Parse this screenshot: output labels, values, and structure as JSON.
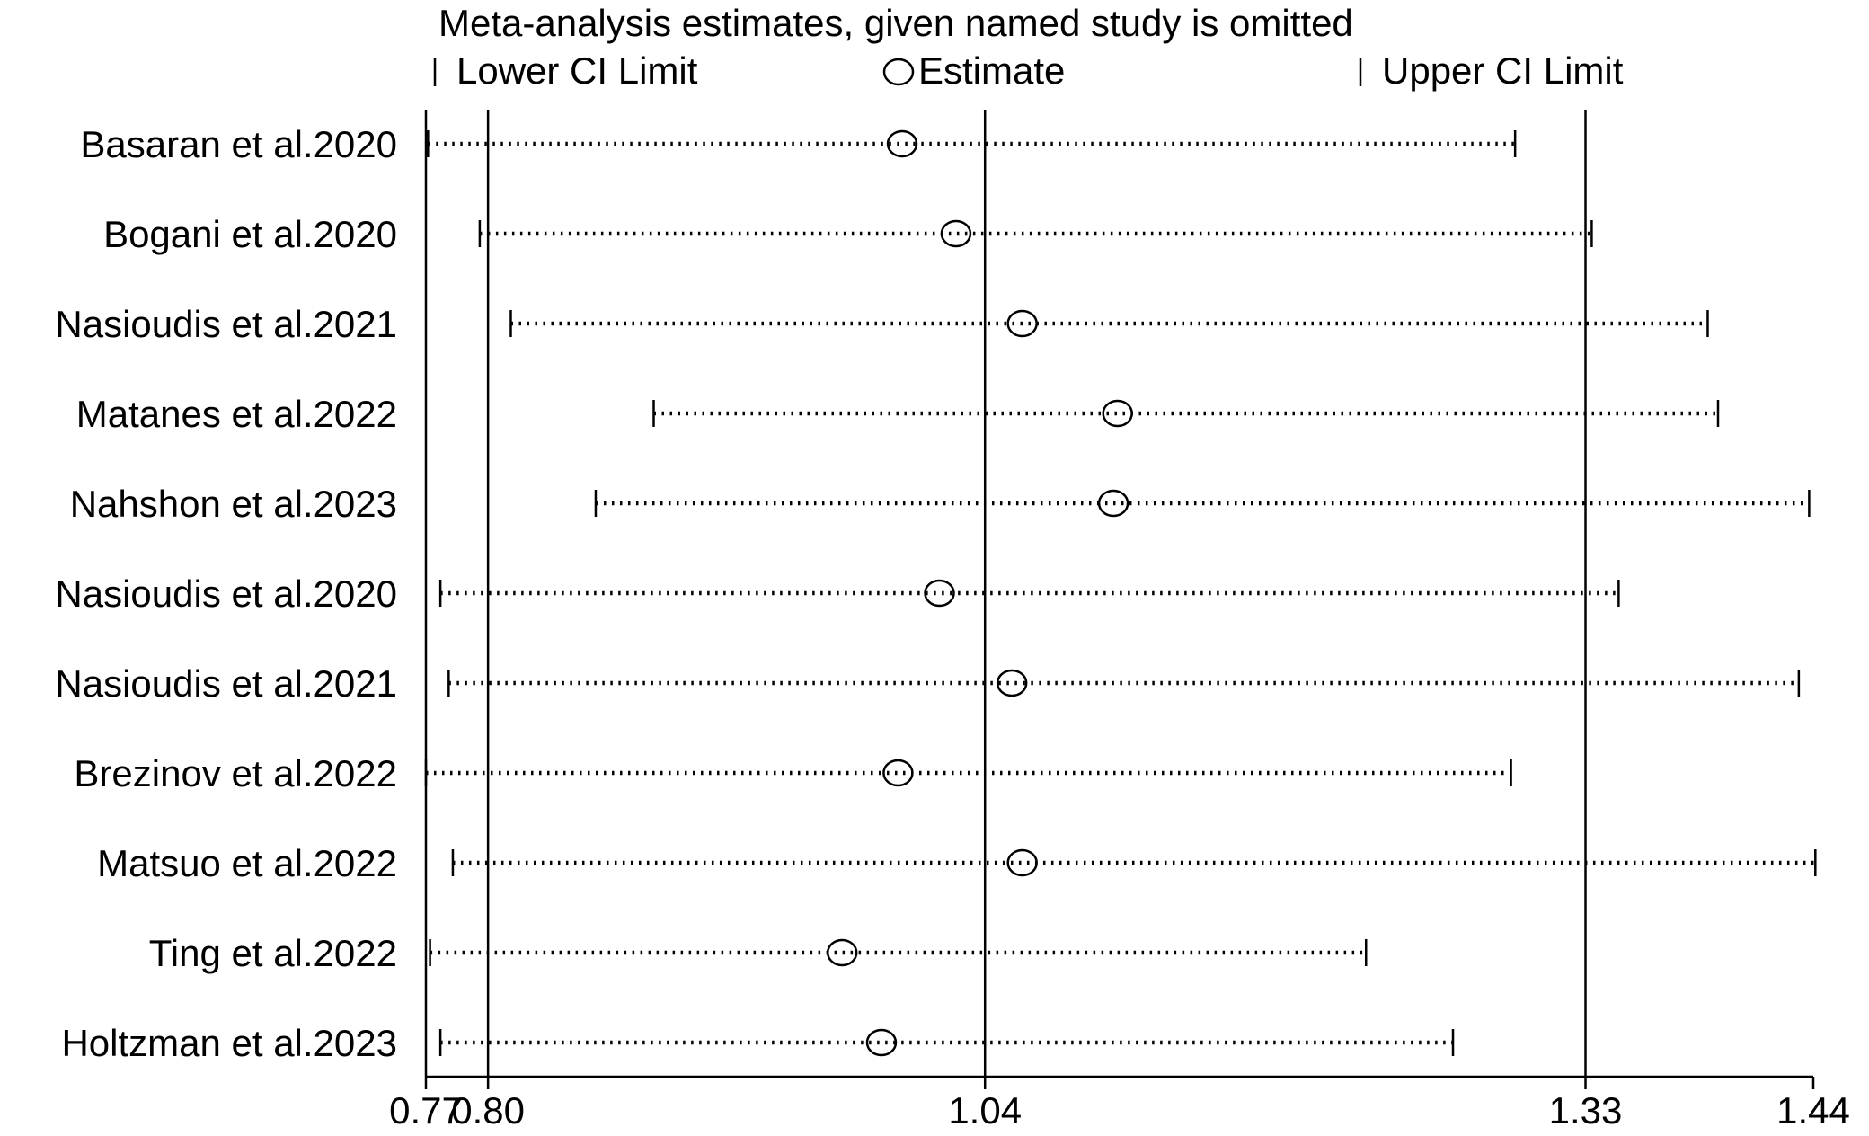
{
  "chart_data": {
    "type": "sensitivity-forest",
    "title": "Meta-analysis estimates, given named study is omitted",
    "legend": {
      "lower": "Lower CI Limit",
      "estimate": "Estimate",
      "upper": "Upper CI Limit"
    },
    "x_ticks": [
      {
        "value": 0.77,
        "label": "0.77"
      },
      {
        "value": 0.8,
        "label": "0.80"
      },
      {
        "value": 1.04,
        "label": "1.04"
      },
      {
        "value": 1.33,
        "label": "1.33"
      },
      {
        "value": 1.44,
        "label": "1.44"
      }
    ],
    "reference_lines": [
      0.8,
      1.04,
      1.33
    ],
    "xlim": [
      0.77,
      1.44
    ],
    "studies": [
      {
        "name": "Basaran et al.2020",
        "lower": 0.771,
        "estimate": 1.0,
        "upper": 1.296
      },
      {
        "name": "Bogani et al.2020",
        "lower": 0.796,
        "estimate": 1.026,
        "upper": 1.333
      },
      {
        "name": "Nasioudis et al.2021",
        "lower": 0.811,
        "estimate": 1.058,
        "upper": 1.389
      },
      {
        "name": "Matanes et al.2022",
        "lower": 0.88,
        "estimate": 1.104,
        "upper": 1.394
      },
      {
        "name": "Nahshon et al.2023",
        "lower": 0.852,
        "estimate": 1.102,
        "upper": 1.438
      },
      {
        "name": "Nasioudis et al.2020",
        "lower": 0.777,
        "estimate": 1.018,
        "upper": 1.346
      },
      {
        "name": "Nasioudis et al.2021",
        "lower": 0.781,
        "estimate": 1.053,
        "upper": 1.433
      },
      {
        "name": "Brezinov et al.2022",
        "lower": 0.77,
        "estimate": 0.998,
        "upper": 1.294
      },
      {
        "name": "Matsuo et al.2022",
        "lower": 0.783,
        "estimate": 1.058,
        "upper": 1.441
      },
      {
        "name": "Ting et al.2022",
        "lower": 0.772,
        "estimate": 0.971,
        "upper": 1.224
      },
      {
        "name": "Holtzman et al.2023",
        "lower": 0.777,
        "estimate": 0.99,
        "upper": 1.266
      }
    ]
  }
}
